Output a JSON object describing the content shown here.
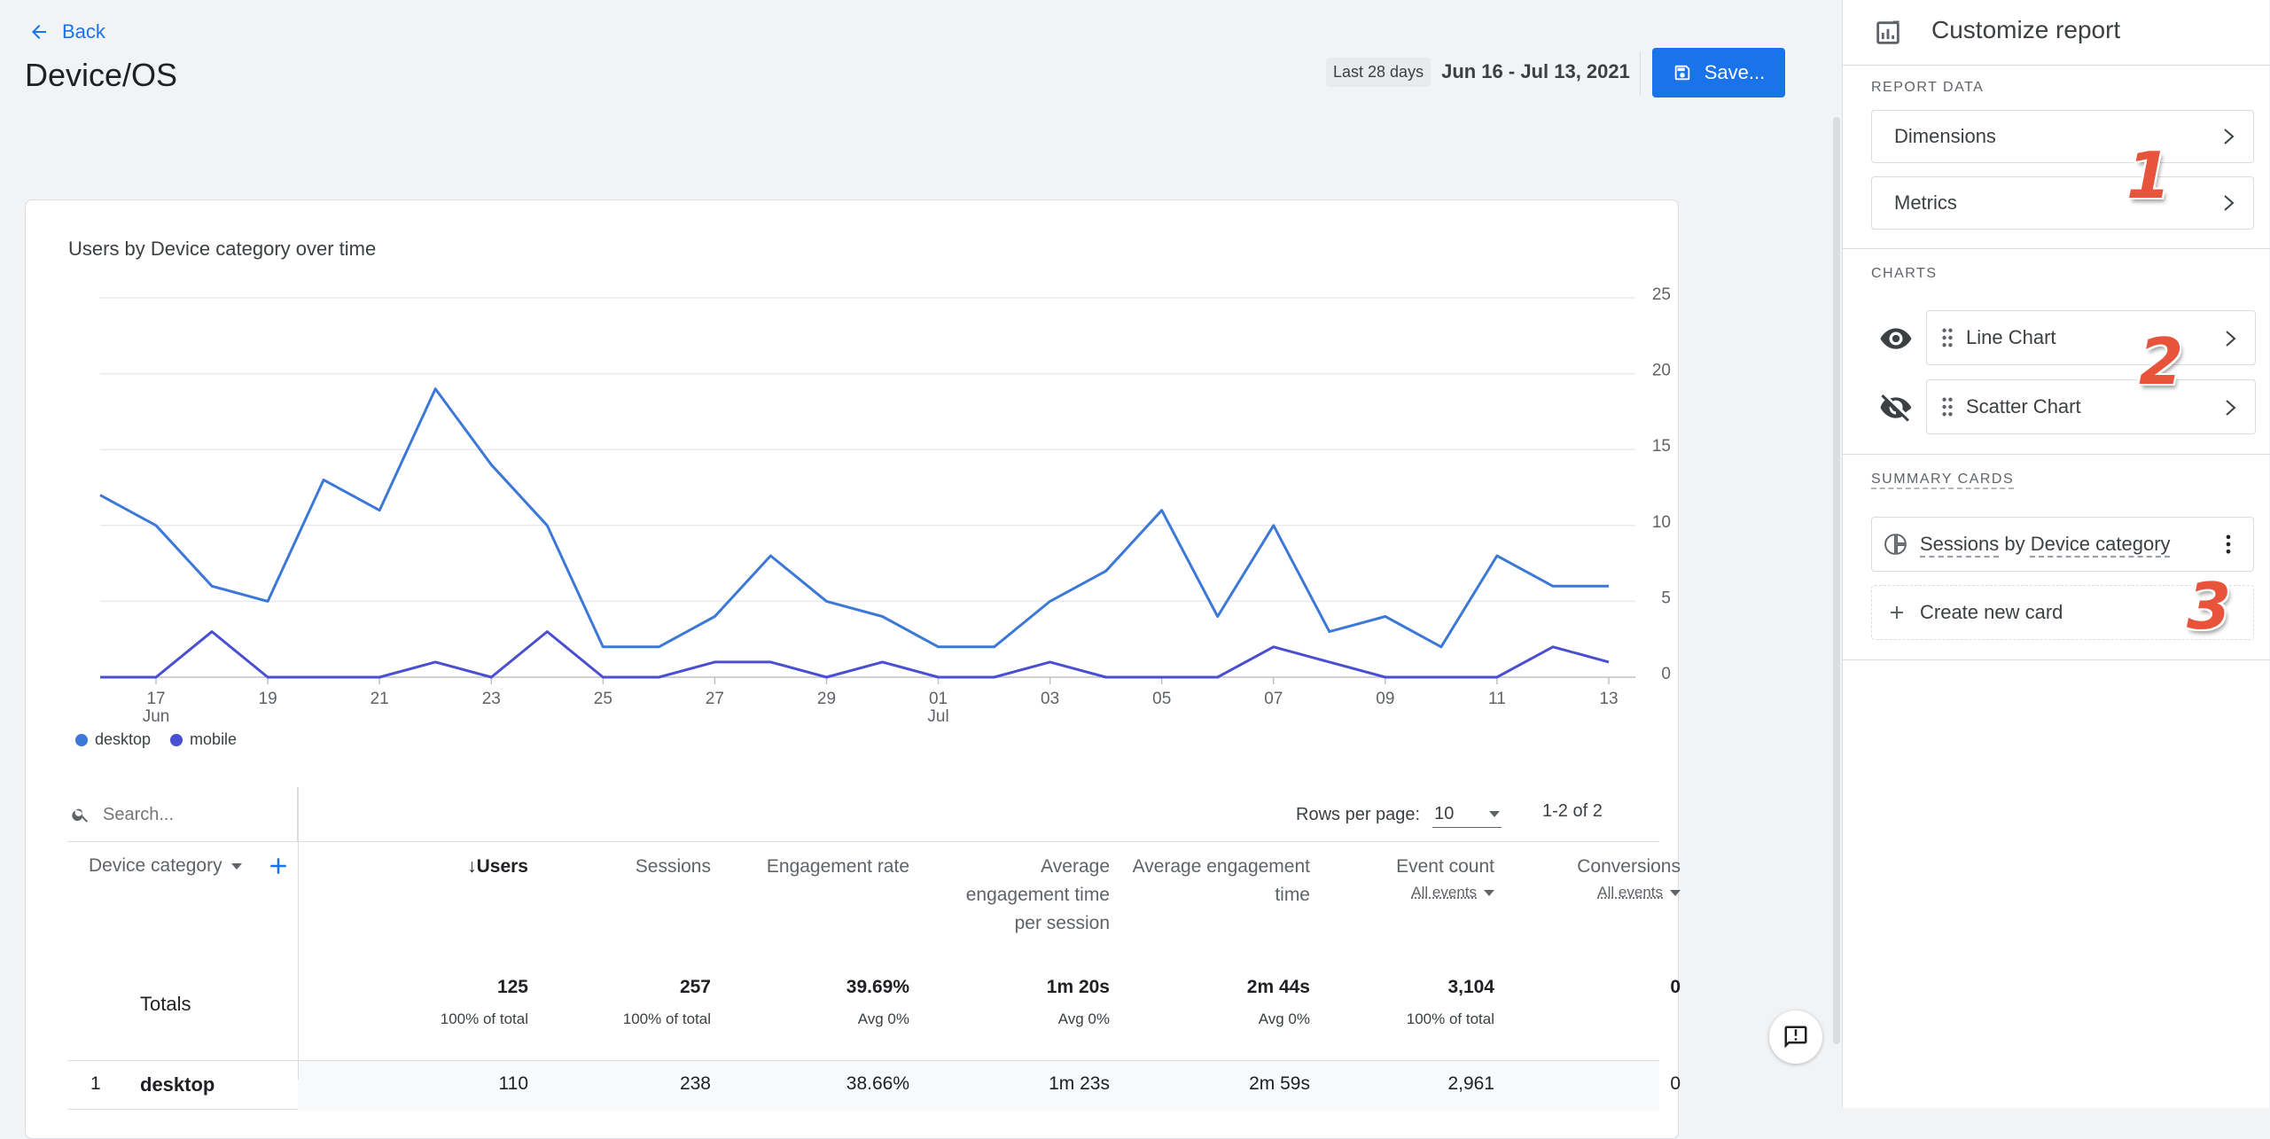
{
  "header": {
    "back_label": "Back",
    "page_title": "Device/OS",
    "date_preset": "Last 28 days",
    "date_range": "Jun 16 - Jul 13, 2021",
    "save_label": "Save..."
  },
  "chart_data": {
    "type": "line",
    "title": "Users by Device category over time",
    "x_ticks": [
      {
        "day": "17",
        "month": "Jun"
      },
      {
        "day": "19",
        "month": ""
      },
      {
        "day": "21",
        "month": ""
      },
      {
        "day": "23",
        "month": ""
      },
      {
        "day": "25",
        "month": ""
      },
      {
        "day": "27",
        "month": ""
      },
      {
        "day": "29",
        "month": ""
      },
      {
        "day": "01",
        "month": "Jul"
      },
      {
        "day": "03",
        "month": ""
      },
      {
        "day": "05",
        "month": ""
      },
      {
        "day": "07",
        "month": ""
      },
      {
        "day": "09",
        "month": ""
      },
      {
        "day": "11",
        "month": ""
      },
      {
        "day": "13",
        "month": ""
      }
    ],
    "x": [
      "Jun 16",
      "Jun 17",
      "Jun 18",
      "Jun 19",
      "Jun 20",
      "Jun 21",
      "Jun 22",
      "Jun 23",
      "Jun 24",
      "Jun 25",
      "Jun 26",
      "Jun 27",
      "Jun 28",
      "Jun 29",
      "Jun 30",
      "Jul 01",
      "Jul 02",
      "Jul 03",
      "Jul 04",
      "Jul 05",
      "Jul 06",
      "Jul 07",
      "Jul 08",
      "Jul 09",
      "Jul 10",
      "Jul 11",
      "Jul 12",
      "Jul 13"
    ],
    "y_ticks": [
      25,
      20,
      15,
      10,
      5,
      0
    ],
    "ylim": [
      0,
      25
    ],
    "series": [
      {
        "name": "desktop",
        "color": "#3c78d8",
        "values": [
          12,
          10,
          6,
          5,
          13,
          11,
          19,
          14,
          10,
          2,
          2,
          4,
          8,
          5,
          4,
          2,
          2,
          5,
          7,
          11,
          4,
          10,
          3,
          4,
          2,
          8,
          6,
          6
        ]
      },
      {
        "name": "mobile",
        "color": "#4a4fd1",
        "values": [
          0,
          0,
          3,
          0,
          0,
          0,
          1,
          0,
          3,
          0,
          0,
          1,
          1,
          0,
          1,
          0,
          0,
          1,
          0,
          0,
          0,
          2,
          1,
          0,
          0,
          0,
          2,
          1
        ]
      }
    ]
  },
  "table": {
    "search_placeholder": "Search...",
    "rows_per_page_label": "Rows per page:",
    "rows_per_page_value": "10",
    "pager": "1-2 of 2",
    "dimension_header": "Device category",
    "columns": [
      {
        "label": "Users",
        "sub": ""
      },
      {
        "label": "Sessions",
        "sub": ""
      },
      {
        "label": "Engagement rate",
        "sub": ""
      },
      {
        "label": "Average engagement time per session",
        "sub": ""
      },
      {
        "label": "Average engagement time",
        "sub": ""
      },
      {
        "label": "Event count",
        "sub": "All events"
      },
      {
        "label": "Conversions",
        "sub": "All events"
      }
    ],
    "totals_label": "Totals",
    "totals": [
      {
        "v": "125",
        "s": "100% of total"
      },
      {
        "v": "257",
        "s": "100% of total"
      },
      {
        "v": "39.69%",
        "s": "Avg 0%"
      },
      {
        "v": "1m 20s",
        "s": "Avg 0%"
      },
      {
        "v": "2m 44s",
        "s": "Avg 0%"
      },
      {
        "v": "3,104",
        "s": "100% of total"
      },
      {
        "v": "0",
        "s": ""
      }
    ],
    "rows": [
      {
        "idx": "1",
        "name": "desktop",
        "cells": [
          "110",
          "238",
          "38.66%",
          "1m 23s",
          "2m 59s",
          "2,961",
          "0"
        ]
      }
    ]
  },
  "panel": {
    "title": "Customize report",
    "report_data_label": "REPORT DATA",
    "dimensions_label": "Dimensions",
    "metrics_label": "Metrics",
    "charts_label": "CHARTS",
    "line_chart_label": "Line Chart",
    "scatter_chart_label": "Scatter Chart",
    "summary_cards_label": "SUMMARY CARDS",
    "card_part1": "Sessions",
    "card_part2": "by",
    "card_part3": "Device category",
    "create_card_label": "Create new card",
    "badges": [
      "1",
      "2",
      "3"
    ]
  },
  "colors": {
    "accent": "#1a73e8",
    "badge": "#e8533c"
  }
}
